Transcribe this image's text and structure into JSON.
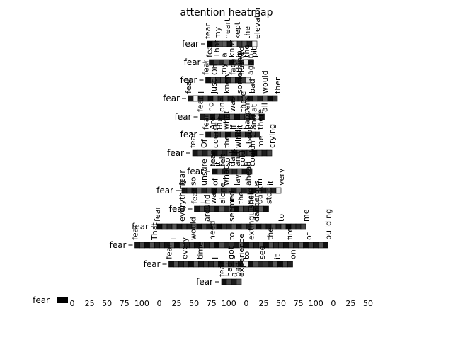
{
  "chart_data": {
    "type": "heatmap",
    "title": "attention heatmap",
    "row_label": "fear",
    "rows": [
      {
        "tokens": [
          "fear",
          "my",
          "heart",
          "kept",
          "the",
          "elevator"
        ],
        "cells": [
          1,
          0.82,
          0.7,
          0.64,
          0.91,
          0.15,
          0.78,
          0.66,
          0.88,
          0.04
        ]
      },
      {
        "tokens": [
          "fear",
          "That",
          "a",
          "knot",
          "in",
          "the",
          "pit"
        ],
        "cells": [
          0.92,
          0.74,
          0.85,
          0.6,
          0.96,
          0.7,
          0.81,
          0.09,
          0.9
        ]
      },
      {
        "tokens": [
          "fear",
          "Oh",
          "my",
          "face",
          "flushed",
          "again"
        ],
        "cells": [
          0.95,
          0.68,
          0.8,
          0.71,
          0.88,
          0.62,
          0.93,
          0.77,
          0.12
        ]
      },
      {
        "tokens": [
          "fear",
          "I",
          "just",
          "knew",
          "something",
          "bad",
          "would",
          "then"
        ],
        "cells": [
          0.9,
          0.06,
          0.83,
          0.72,
          0.95,
          0.64,
          0.87,
          0.69,
          0.91,
          0.76,
          0.84,
          0.66,
          0.93,
          0.71,
          0.89,
          0.62,
          0.97,
          0.8
        ]
      },
      {
        "tokens": [
          "fear",
          "no",
          "one",
          "was",
          "there",
          "at",
          "all"
        ],
        "cells": [
          0.88,
          0.72,
          0.95,
          0.67,
          0.9,
          0.83,
          0.61,
          0.94,
          0.79,
          0.69,
          0.87,
          0.13,
          0.92
        ]
      },
      {
        "tokens": [
          "fear",
          "Are",
          "But",
          "what",
          "if",
          "it",
          "happens",
          "and",
          "there"
        ],
        "cells": [
          0.93,
          0.7,
          0.84,
          0.65,
          0.96,
          0.73,
          0.89,
          0.68,
          0.91,
          0.77,
          0.82
        ]
      },
      {
        "tokens": [
          "fear",
          "Of",
          "course",
          "the",
          "wind",
          "shook",
          "me",
          "crying"
        ],
        "cells": [
          0.91,
          0.74,
          0.87,
          0.63,
          0.95,
          0.79,
          0.86,
          0.7,
          0.92,
          0.66,
          0.83,
          0.75,
          0.97,
          0.68,
          0.88,
          0.72
        ]
      },
      {
        "tokens": [
          "fear",
          "it",
          "felt",
          "so",
          "dark",
          "and",
          "cold",
          "I",
          "couldn't"
        ],
        "cells": [
          0.94,
          0.67,
          0.89,
          0.73,
          0.85,
          0.61,
          0.92,
          0.78
        ]
      },
      {
        "tokens": [
          "fear",
          "so",
          "unsure",
          "of",
          "what",
          "lay",
          "ahead",
          "in",
          "it",
          "very"
        ],
        "cells": [
          0.89,
          0.76,
          0.93,
          0.64,
          0.87,
          0.71,
          0.96,
          0.69,
          0.84,
          0.74,
          0.91,
          0.66,
          0.88,
          0.79,
          0.95,
          0.62,
          0.9,
          0.73,
          0.86,
          0.1
        ]
      },
      {
        "tokens": [
          "fear",
          "I",
          "was",
          "alone",
          "in",
          "the",
          "cold",
          "dark",
          "stop"
        ],
        "cells": [
          0.92,
          0.7,
          0.86,
          0.75,
          0.94,
          0.65,
          0.88,
          0.72,
          0.97,
          0.68,
          0.83,
          0.77,
          0.9,
          0.63,
          0.95
        ]
      },
      {
        "tokens": [
          "fear",
          "everything",
          "around",
          "seemed",
          "dangerous",
          "to",
          "me"
        ],
        "cells": [
          0.95,
          0.71,
          0.84,
          0.66,
          0.91,
          0.78,
          0.87,
          0.62,
          0.93,
          0.74,
          0.89,
          0.69,
          0.96,
          0.8,
          0.85,
          0.67,
          0.92,
          0.73,
          0.88,
          0.65,
          0.94,
          0.76,
          0.9,
          0.7,
          0.86,
          0.64,
          0.97,
          0.79,
          0.83,
          0.72
        ]
      },
      {
        "tokens": [
          "fear",
          "That",
          "I",
          "would",
          "need",
          "to",
          "extinguisher",
          "the",
          "fire",
          "of",
          "building"
        ],
        "cells": [
          0.9,
          0.73,
          0.95,
          0.68,
          0.87,
          0.79,
          0.92,
          0.64,
          0.96,
          0.71,
          0.85,
          0.77,
          0.93,
          0.66,
          0.89,
          0.74,
          0.97,
          0.69,
          0.86,
          0.8,
          0.91,
          0.63,
          0.94,
          0.75,
          0.88,
          0.7,
          0.95,
          0.67,
          0.84,
          0.78,
          0.92,
          0.72,
          0.87,
          0.65,
          0.96,
          0.76,
          0.9,
          0.68,
          0.93
        ]
      },
      {
        "tokens": [
          "fear",
          "every",
          "time",
          "I",
          "got",
          "to",
          "see",
          "it",
          "on"
        ],
        "cells": [
          0.93,
          0.69,
          0.88,
          0.76,
          0.95,
          0.64,
          0.9,
          0.78,
          0.86,
          0.71,
          0.97,
          0.67,
          0.89,
          0.74,
          0.92,
          0.06,
          0.94,
          0.7,
          0.85,
          0.79,
          0.91,
          0.66,
          0.96,
          0.73,
          0.87
        ]
      },
      {
        "tokens": [
          "fear",
          "I",
          "had",
          "a",
          "bad",
          "experience"
        ],
        "cells": [
          0.94,
          0.72,
          0.89,
          0.66
        ]
      }
    ],
    "tick_labels": [
      "0",
      "25",
      "50",
      "75",
      "100"
    ],
    "colormap": [
      "#000000",
      "#ffffff"
    ]
  }
}
